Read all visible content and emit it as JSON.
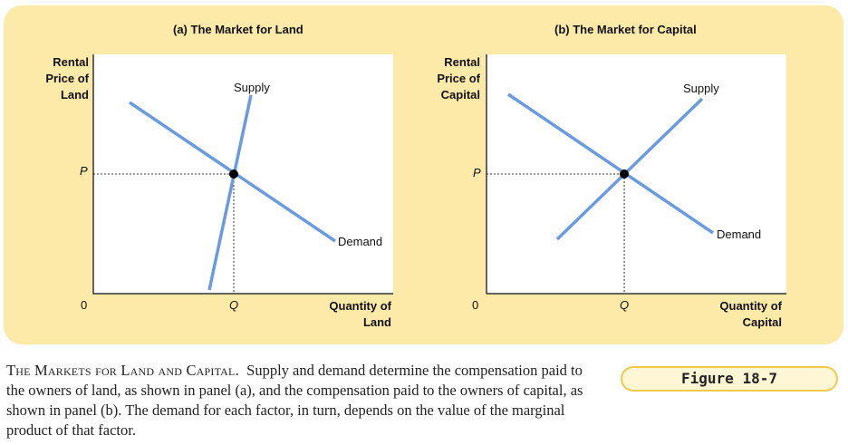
{
  "colors": {
    "panel_bg": "#fde9a8",
    "curve": "#6a9be0",
    "badge_border": "#f2c94c"
  },
  "panel_a": {
    "title": "(a) The Market for Land",
    "y_axis_label": [
      "Rental",
      "Price of",
      "Land"
    ],
    "x_axis_label": [
      "Quantity of",
      "Land"
    ],
    "origin": "0",
    "p_label": "P",
    "q_label": "Q",
    "supply_label": "Supply",
    "demand_label": "Demand"
  },
  "panel_b": {
    "title": "(b) The Market for Capital",
    "y_axis_label": [
      "Rental",
      "Price of",
      "Capital"
    ],
    "x_axis_label": [
      "Quantity of",
      "Capital"
    ],
    "origin": "0",
    "p_label": "P",
    "q_label": "Q",
    "supply_label": "Supply",
    "demand_label": "Demand"
  },
  "caption": {
    "title": "The Markets for Land and Capital.",
    "body": "Supply and demand determine the compensation paid to the owners of land, as shown in panel (a), and the compensation paid to the owners of capital, as shown in panel (b). The demand for each factor, in turn, depends on the value of the marginal product of that factor."
  },
  "figure_label": "Figure 18-7"
}
